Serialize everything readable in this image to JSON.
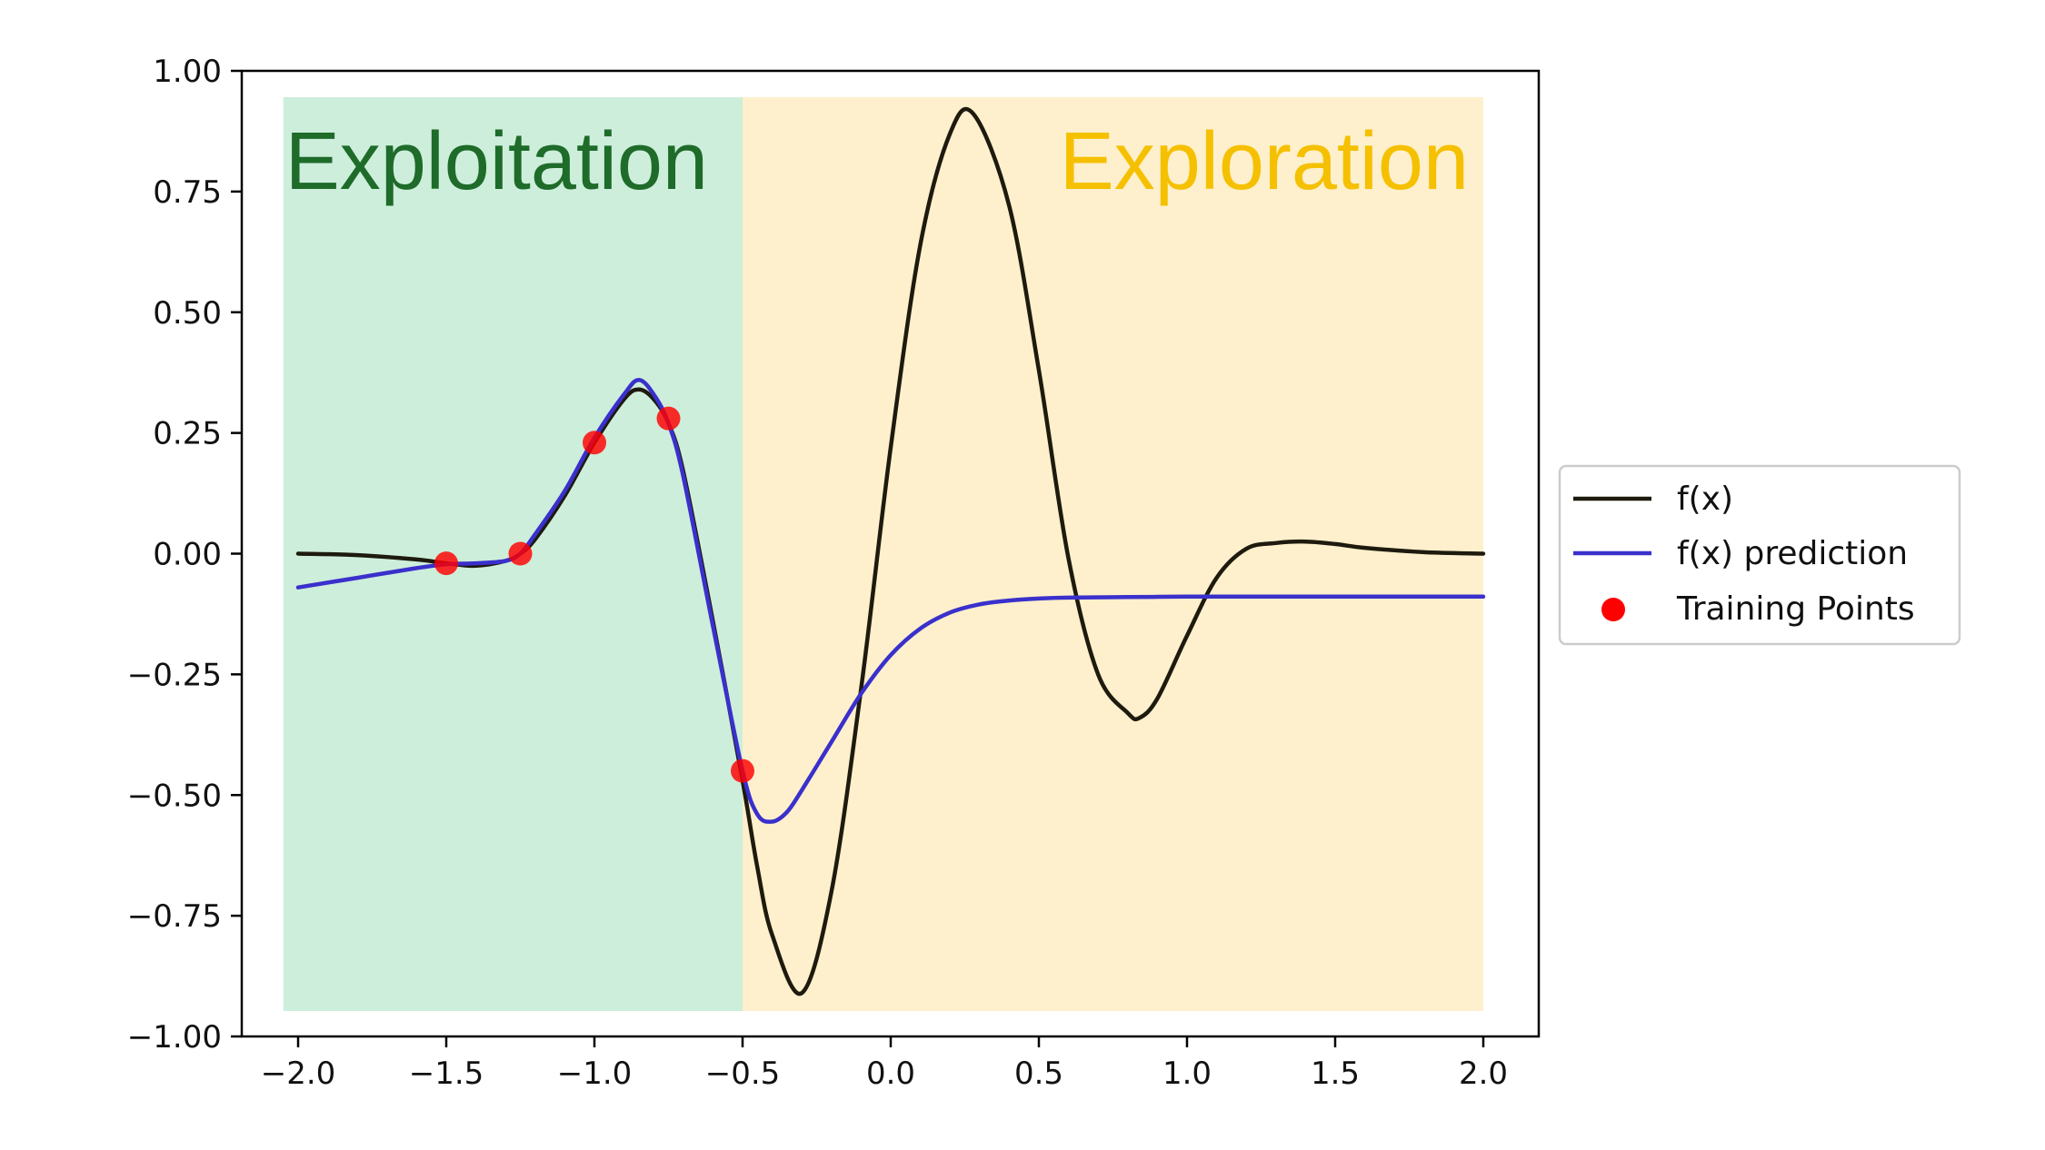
{
  "chart_data": {
    "type": "line",
    "title": "",
    "xlabel": "",
    "ylabel": "",
    "xlim": [
      -2.0,
      2.0
    ],
    "ylim": [
      -1.0,
      1.0
    ],
    "xticks": [
      -2.0,
      -1.5,
      -1.0,
      -0.5,
      0.0,
      0.5,
      1.0,
      1.5,
      2.0
    ],
    "xtick_labels": [
      "−2.0",
      "−1.5",
      "−1.0",
      "−0.5",
      "0.0",
      "0.5",
      "1.0",
      "1.5",
      "2.0"
    ],
    "yticks": [
      1.0,
      0.75,
      0.5,
      0.25,
      0.0,
      -0.25,
      -0.5,
      -0.75,
      -1.0
    ],
    "ytick_labels": [
      "1.00",
      "0.75",
      "0.50",
      "0.25",
      "0.00",
      "−0.25",
      "−0.50",
      "−0.75",
      "−1.00"
    ],
    "grid": false,
    "legend_placement": "right-outside",
    "regions": [
      {
        "label": "Exploitation",
        "x_range": [
          -2.05,
          -0.5
        ],
        "fill": "#cdeedb",
        "text_color": "#1e6b2a",
        "label_align": "left"
      },
      {
        "label": "Exploration",
        "x_range": [
          -0.5,
          2.0
        ],
        "fill": "#fef0cc",
        "text_color": "#f5c000",
        "label_align": "right"
      }
    ],
    "series": [
      {
        "name": "f(x)",
        "kind": "line",
        "color": "#1e1a0e",
        "x": [
          -2.0,
          -1.8,
          -1.6,
          -1.5,
          -1.4,
          -1.3,
          -1.25,
          -1.2,
          -1.1,
          -1.0,
          -0.9,
          -0.85,
          -0.8,
          -0.75,
          -0.7,
          -0.6,
          -0.5,
          -0.45,
          -0.4,
          -0.3,
          -0.2,
          -0.1,
          0.0,
          0.1,
          0.2,
          0.28,
          0.4,
          0.5,
          0.6,
          0.7,
          0.8,
          0.84,
          0.9,
          1.0,
          1.1,
          1.2,
          1.3,
          1.4,
          1.5,
          1.6,
          1.8,
          2.0
        ],
        "y": [
          0.0,
          -0.003,
          -0.012,
          -0.02,
          -0.025,
          -0.015,
          0.0,
          0.03,
          0.12,
          0.23,
          0.32,
          0.34,
          0.32,
          0.27,
          0.17,
          -0.14,
          -0.47,
          -0.65,
          -0.79,
          -0.91,
          -0.7,
          -0.28,
          0.22,
          0.64,
          0.87,
          0.91,
          0.72,
          0.38,
          -0.01,
          -0.25,
          -0.33,
          -0.34,
          -0.3,
          -0.17,
          -0.05,
          0.01,
          0.022,
          0.025,
          0.02,
          0.012,
          0.003,
          0.0
        ]
      },
      {
        "name": "f(x) prediction",
        "kind": "line",
        "color": "#3a30cc",
        "x": [
          -2.0,
          -1.8,
          -1.6,
          -1.5,
          -1.4,
          -1.3,
          -1.25,
          -1.2,
          -1.1,
          -1.0,
          -0.9,
          -0.85,
          -0.8,
          -0.75,
          -0.7,
          -0.6,
          -0.5,
          -0.45,
          -0.4,
          -0.35,
          -0.3,
          -0.2,
          -0.1,
          0.0,
          0.1,
          0.2,
          0.3,
          0.4,
          0.5,
          0.6,
          0.8,
          1.0,
          1.2,
          1.5,
          1.8,
          2.0
        ],
        "y": [
          -0.07,
          -0.05,
          -0.03,
          -0.022,
          -0.02,
          -0.015,
          0.0,
          0.04,
          0.13,
          0.24,
          0.33,
          0.36,
          0.33,
          0.27,
          0.16,
          -0.15,
          -0.45,
          -0.54,
          -0.555,
          -0.535,
          -0.49,
          -0.39,
          -0.29,
          -0.21,
          -0.155,
          -0.122,
          -0.105,
          -0.097,
          -0.093,
          -0.091,
          -0.09,
          -0.089,
          -0.089,
          -0.089,
          -0.089,
          -0.089
        ]
      },
      {
        "name": "Training Points",
        "kind": "scatter",
        "color": "#ff0000",
        "x": [
          -1.5,
          -1.25,
          -1.0,
          -0.75,
          -0.5
        ],
        "y": [
          -0.02,
          0.0,
          0.23,
          0.28,
          -0.45
        ]
      }
    ]
  }
}
